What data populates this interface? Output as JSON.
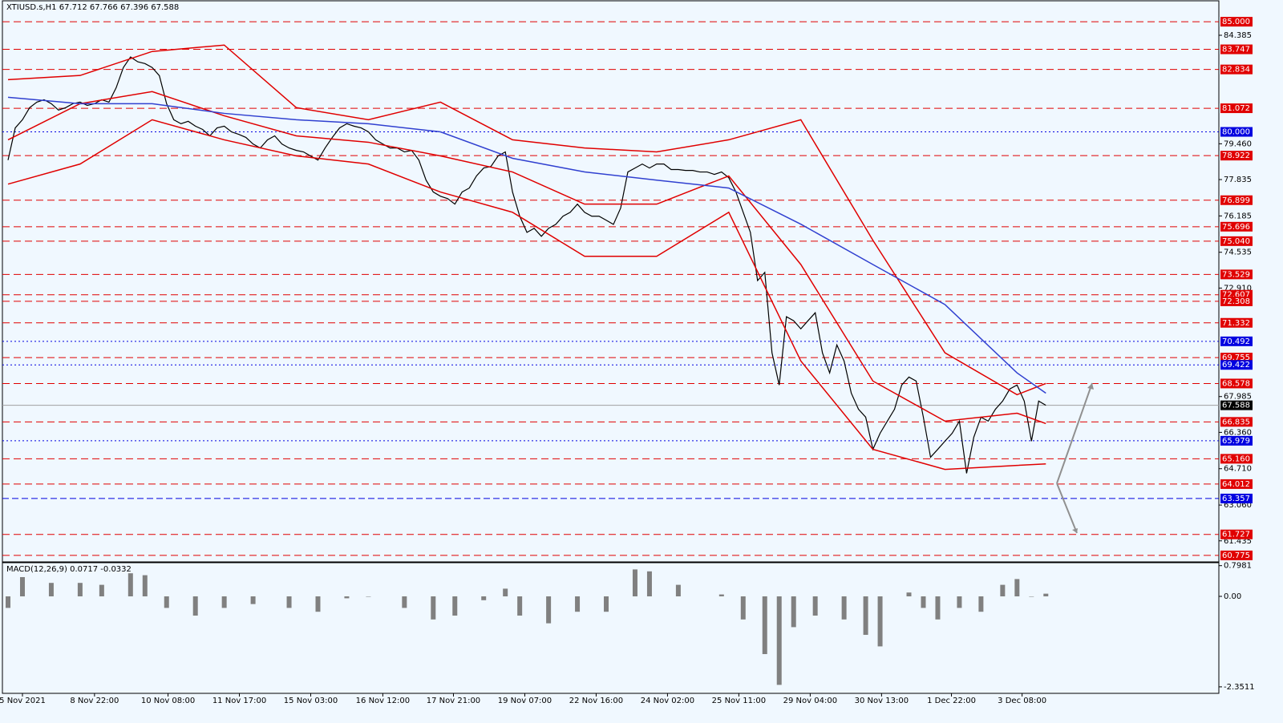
{
  "chart_data": {
    "type": "line",
    "title": "XTIUSD.s,H1  67.712 67.766 67.396 67.588",
    "xlim": [
      -0.78,
      168
    ],
    "ylim": [
      60.48,
      85.95
    ],
    "xticks": [
      {
        "value": 2,
        "label": "5 Nov 2021"
      },
      {
        "value": 12,
        "label": "8 Nov 22:00"
      },
      {
        "value": 22.2,
        "label": "10 Nov 08:00"
      },
      {
        "value": 32.1,
        "label": "11 Nov 17:00"
      },
      {
        "value": 42,
        "label": "15 Nov 03:00"
      },
      {
        "value": 52,
        "label": "16 Nov 12:00"
      },
      {
        "value": 61.8,
        "label": "17 Nov 21:00"
      },
      {
        "value": 71.7,
        "label": "19 Nov 07:00"
      },
      {
        "value": 81.6,
        "label": "22 Nov 16:00"
      },
      {
        "value": 91.5,
        "label": "24 Nov 02:00"
      },
      {
        "value": 101.4,
        "label": "25 Nov 11:00"
      },
      {
        "value": 111.3,
        "label": "29 Nov 04:00"
      },
      {
        "value": 121.2,
        "label": "30 Nov 13:00"
      },
      {
        "value": 130.9,
        "label": "1 Dec 22:00"
      },
      {
        "value": 140.7,
        "label": "3 Dec 08:00"
      }
    ],
    "yticks": [
      84.385,
      {
        "value": 79.46,
        "label": "79.460"
      },
      77.835,
      76.185,
      74.535,
      {
        "value": 72.91,
        "label": "72.910"
      },
      67.985,
      {
        "value": 66.36,
        "label": "66.360"
      },
      {
        "value": 64.71,
        "label": "64.710"
      },
      {
        "value": 63.06,
        "label": "63.060"
      },
      61.435
    ],
    "levels_color": "#e00000",
    "levels": [
      {
        "value": 85,
        "label": "85.000"
      },
      83.747,
      82.834,
      81.072,
      78.922,
      76.899,
      75.696,
      {
        "value": 75.04,
        "label": "75.040"
      },
      73.529,
      72.607,
      72.308,
      71.332,
      69.755,
      68.578,
      66.835,
      {
        "value": 65.16,
        "label": "65.160"
      },
      64.012,
      61.727,
      60.775
    ],
    "blue_levels_color": "#0000e0",
    "blue_levels": [
      {
        "value": 80,
        "label": "80.000"
      },
      70.492,
      69.422,
      65.979,
      63.357
    ],
    "last_price": 67.588,
    "last_price_color": "#000000",
    "series": [
      {
        "color": "#000000",
        "values": [
          78.72,
          80.18,
          80.55,
          81.1,
          81.35,
          81.46,
          81.28,
          80.99,
          81.1,
          81.28,
          81.35,
          81.2,
          81.28,
          81.46,
          81.35,
          82.0,
          82.92,
          83.4,
          83.18,
          83.1,
          82.92,
          82.55,
          81.28,
          80.55,
          80.37,
          80.48,
          80.26,
          80.11,
          79.82,
          80.18,
          80.26,
          80.0,
          79.89,
          79.75,
          79.45,
          79.27,
          79.64,
          79.82,
          79.45,
          79.27,
          79.16,
          79.09,
          78.9,
          78.72,
          79.27,
          79.75,
          80.18,
          80.37,
          80.26,
          80.18,
          80.0,
          79.64,
          79.45,
          79.27,
          79.27,
          79.09,
          79.16,
          78.72,
          77.81,
          77.27,
          77.08,
          76.97,
          76.72,
          77.27,
          77.45,
          78.0,
          78.36,
          78.43,
          78.91,
          79.09,
          77.27,
          76.17,
          75.44,
          75.62,
          75.26,
          75.62,
          75.8,
          76.17,
          76.35,
          76.72,
          76.35,
          76.17,
          76.17,
          75.99,
          75.8,
          76.54,
          78.18,
          78.36,
          78.54,
          78.36,
          78.54,
          78.54,
          78.29,
          78.29,
          78.25,
          78.25,
          78.18,
          78.18,
          78.07,
          78.18,
          77.92,
          77.27,
          76.35,
          75.44,
          73.25,
          73.62,
          69.97,
          68.51,
          71.61,
          71.43,
          71.06,
          71.43,
          71.79,
          69.97,
          69.06,
          70.33,
          69.6,
          68.14,
          67.41,
          67.05,
          65.59,
          66.32,
          66.87,
          67.41,
          68.51,
          68.87,
          68.69,
          67.05,
          65.23,
          65.59,
          65.96,
          66.32,
          66.87,
          64.5,
          66.14,
          67.05,
          66.87,
          67.41,
          67.78,
          68.33,
          68.51,
          67.78,
          65.96,
          67.78,
          67.59
        ]
      },
      {
        "color": "#e00000",
        "x": [
          0,
          10,
          20,
          30,
          40,
          50,
          60,
          70,
          80,
          90,
          100,
          110,
          120,
          130,
          140,
          144
        ],
        "values": [
          82.37,
          82.56,
          83.65,
          83.94,
          81.1,
          80.55,
          81.35,
          79.64,
          79.27,
          79.09,
          79.64,
          80.55,
          75.08,
          69.97,
          68.07,
          68.58
        ]
      },
      {
        "color": "#e00000",
        "x": [
          0,
          10,
          20,
          30,
          40,
          50,
          60,
          70,
          80,
          90,
          100,
          110,
          120,
          130,
          140,
          144
        ],
        "values": [
          79.64,
          81.28,
          81.83,
          80.73,
          79.82,
          79.53,
          78.91,
          78.18,
          76.72,
          76.72,
          78.0,
          73.98,
          68.69,
          66.87,
          67.23,
          66.76
        ]
      },
      {
        "color": "#e00000",
        "x": [
          0,
          10,
          20,
          30,
          40,
          50,
          60,
          70,
          80,
          90,
          100,
          110,
          120,
          130,
          140,
          144
        ],
        "values": [
          77.63,
          78.54,
          80.55,
          79.64,
          78.91,
          78.54,
          77.27,
          76.35,
          74.35,
          74.35,
          76.35,
          69.6,
          65.59,
          64.68,
          64.86,
          64.93
        ]
      },
      {
        "color": "#3040d0",
        "x": [
          0,
          10,
          20,
          30,
          40,
          50,
          60,
          70,
          80,
          90,
          100,
          110,
          120,
          130,
          140,
          144
        ],
        "values": [
          81.57,
          81.28,
          81.28,
          80.84,
          80.55,
          80.37,
          80.0,
          78.8,
          78.18,
          77.81,
          77.45,
          75.81,
          73.98,
          72.16,
          69.06,
          68.14
        ]
      }
    ],
    "macd": {
      "label": "MACD(12,26,9) 0.0717 -0.0332",
      "color": "#808080",
      "ylim": [
        -2.52,
        0.875
      ],
      "yticks": [
        0.7981,
        {
          "value": 0,
          "label": "0.00"
        },
        -2.3511
      ],
      "x": [
        0,
        2,
        6,
        10,
        13,
        17,
        19,
        22,
        26,
        30,
        34,
        39,
        43,
        47,
        50,
        55,
        59,
        62,
        66,
        69,
        71,
        75,
        79,
        83,
        87,
        89,
        93,
        99,
        102,
        105,
        107,
        109,
        112,
        116,
        119,
        121,
        125,
        127,
        129,
        132,
        135,
        138,
        140,
        142,
        144
      ],
      "values": [
        -0.3,
        0.5,
        0.35,
        0.35,
        0.3,
        0.6,
        0.55,
        -0.3,
        -0.5,
        -0.3,
        -0.2,
        -0.3,
        -0.4,
        -0.05,
        0.0,
        -0.3,
        -0.6,
        -0.5,
        -0.1,
        0.2,
        -0.5,
        -0.7,
        -0.4,
        -0.4,
        0.7,
        0.65,
        0.3,
        0.05,
        -0.6,
        -1.5,
        -2.3,
        -0.8,
        -0.5,
        -0.6,
        -1.0,
        -1.3,
        0.1,
        -0.3,
        -0.6,
        -0.3,
        -0.4,
        0.3,
        0.45,
        0.0,
        0.07
      ]
    }
  }
}
